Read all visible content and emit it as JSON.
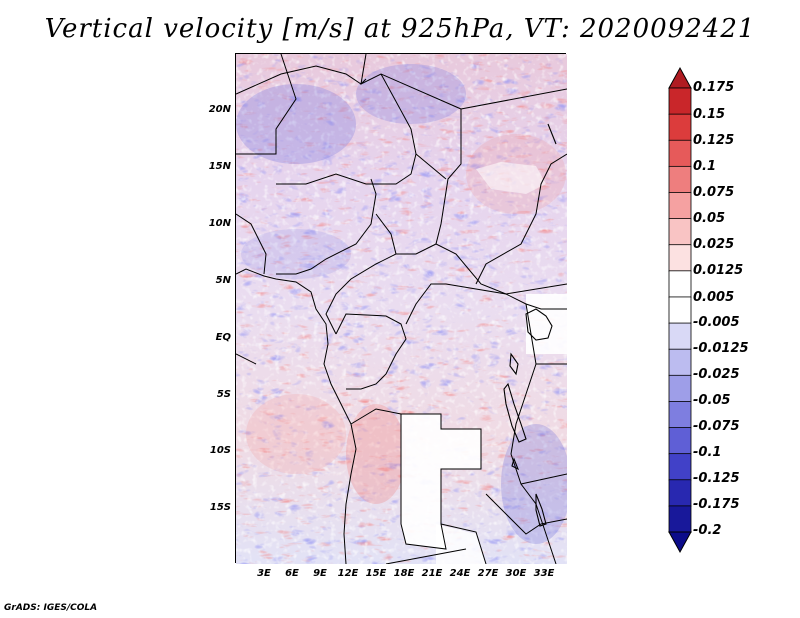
{
  "title": "Vertical velocity [m/s] at 925hPa, VT: 2020092421",
  "credit": "GrADS: IGES/COLA",
  "map": {
    "variable": "Vertical velocity",
    "units": "m/s",
    "level": "925hPa",
    "valid_time": "2020092421",
    "lat_labels": [
      "20N",
      "15N",
      "10N",
      "5N",
      "EQ",
      "5S",
      "10S",
      "15S"
    ],
    "lon_labels": [
      "3E",
      "6E",
      "9E",
      "12E",
      "15E",
      "18E",
      "21E",
      "24E",
      "27E",
      "30E",
      "33E"
    ]
  },
  "colorbar": {
    "levels": [
      "0.175",
      "0.15",
      "0.125",
      "0.1",
      "0.075",
      "0.05",
      "0.025",
      "0.0125",
      "0.005",
      "-0.005",
      "-0.0125",
      "-0.025",
      "-0.05",
      "-0.075",
      "-0.1",
      "-0.125",
      "-0.175",
      "-0.2"
    ],
    "colors": [
      "#b01c22",
      "#c9262a",
      "#dc3c3c",
      "#e65a5a",
      "#ee7e7e",
      "#f5a1a1",
      "#f9c4c4",
      "#fce1e1",
      "#ffffff",
      "#ffffff",
      "#d9d9f6",
      "#bcbcf0",
      "#9e9ee8",
      "#7e7ee0",
      "#5f5fd6",
      "#4141c8",
      "#2828b0",
      "#18189a",
      "#0c0c8a"
    ]
  }
}
